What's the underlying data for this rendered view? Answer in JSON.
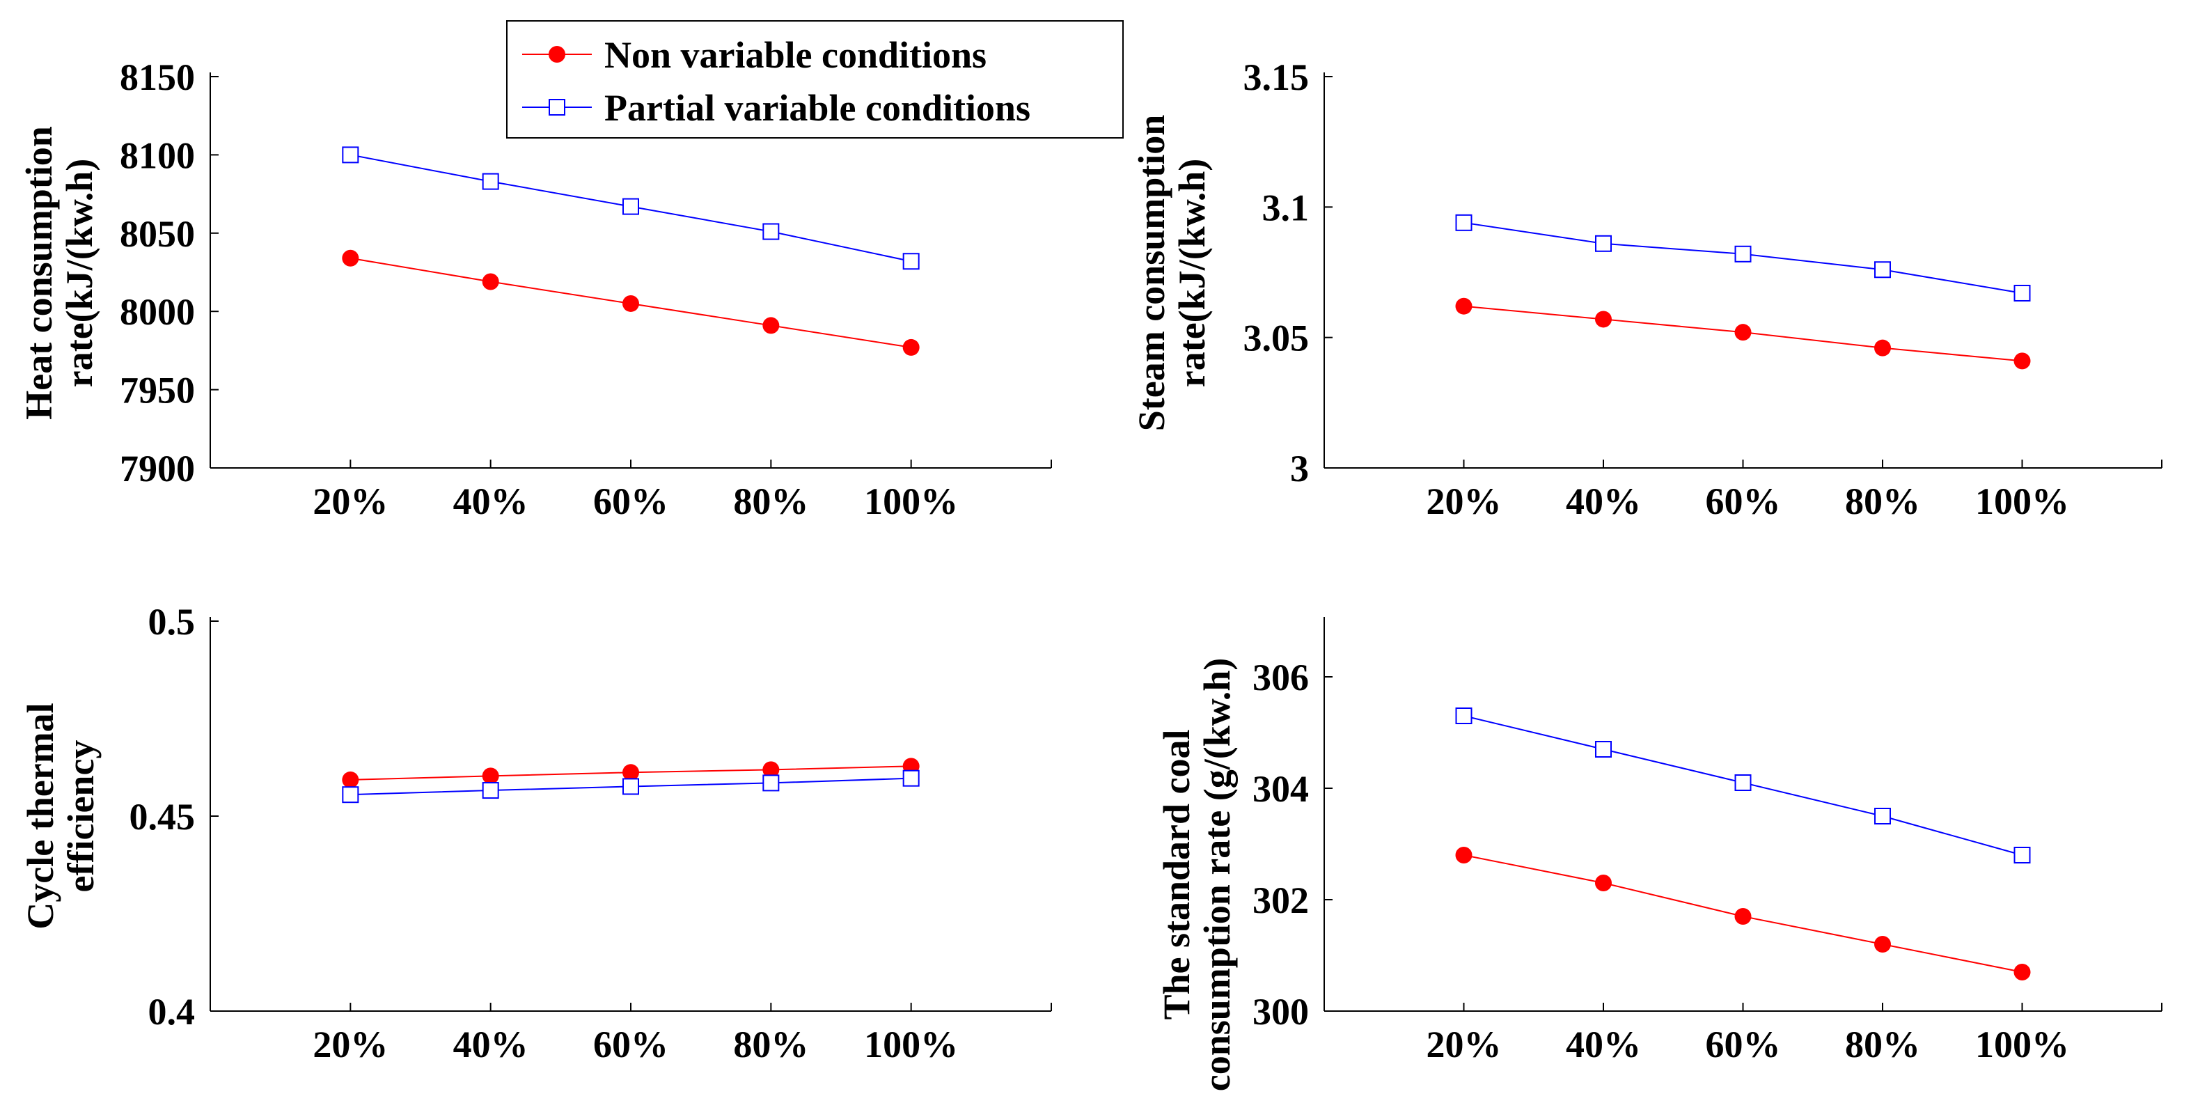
{
  "colors": {
    "series1": "#ff0000",
    "series2": "#0000ff",
    "axis": "#000000"
  },
  "legend": {
    "location": "top-center",
    "entries": [
      "Non variable conditions",
      "Partial variable conditions"
    ]
  },
  "chart_data": [
    {
      "type": "line",
      "ylabel": [
        "Heat consumption",
        "rate(kJ/(kw.h)"
      ],
      "categories": [
        "20%",
        "40%",
        "60%",
        "80%",
        "100%"
      ],
      "yticks": [
        "7900",
        "7950",
        "8000",
        "8050",
        "8100",
        "8150"
      ],
      "ylim": [
        7900,
        8150
      ],
      "series": [
        {
          "name": "Non variable conditions",
          "values": [
            8034,
            8019,
            8005,
            7991,
            7977
          ]
        },
        {
          "name": "Partial variable conditions",
          "values": [
            8100,
            8083,
            8067,
            8051,
            8032
          ]
        }
      ]
    },
    {
      "type": "line",
      "ylabel": [
        "Steam consumption",
        "rate(kJ/(kw.h)"
      ],
      "categories": [
        "20%",
        "40%",
        "60%",
        "80%",
        "100%"
      ],
      "yticks": [
        "3",
        "3.05",
        "3.1",
        "3.15"
      ],
      "ylim": [
        3.0,
        3.15
      ],
      "series": [
        {
          "name": "Non variable conditions",
          "values": [
            3.062,
            3.057,
            3.052,
            3.046,
            3.041
          ]
        },
        {
          "name": "Partial variable conditions",
          "values": [
            3.094,
            3.086,
            3.082,
            3.076,
            3.067
          ]
        }
      ]
    },
    {
      "type": "line",
      "ylabel": [
        "Cycle thermal",
        "efficiency"
      ],
      "categories": [
        "20%",
        "40%",
        "60%",
        "80%",
        "100%"
      ],
      "yticks": [
        "0.4",
        "0.45",
        "0.5"
      ],
      "ylim": [
        0.4,
        0.5
      ],
      "series": [
        {
          "name": "Non variable conditions",
          "values": [
            0.4593,
            0.4603,
            0.4612,
            0.4619,
            0.4628
          ]
        },
        {
          "name": "Partial variable conditions",
          "values": [
            0.4555,
            0.4566,
            0.4576,
            0.4585,
            0.4597
          ]
        }
      ]
    },
    {
      "type": "line",
      "ylabel": [
        "The standard coal",
        "consumption rate  (g/(kw.h)"
      ],
      "categories": [
        "20%",
        "40%",
        "60%",
        "80%",
        "100%"
      ],
      "yticks": [
        "300",
        "302",
        "304",
        "306"
      ],
      "ylim": [
        300,
        307
      ],
      "series": [
        {
          "name": "Non variable conditions",
          "values": [
            302.8,
            302.3,
            301.7,
            301.2,
            300.7
          ]
        },
        {
          "name": "Partial variable conditions",
          "values": [
            305.3,
            304.7,
            304.1,
            303.5,
            302.8
          ]
        }
      ]
    }
  ]
}
